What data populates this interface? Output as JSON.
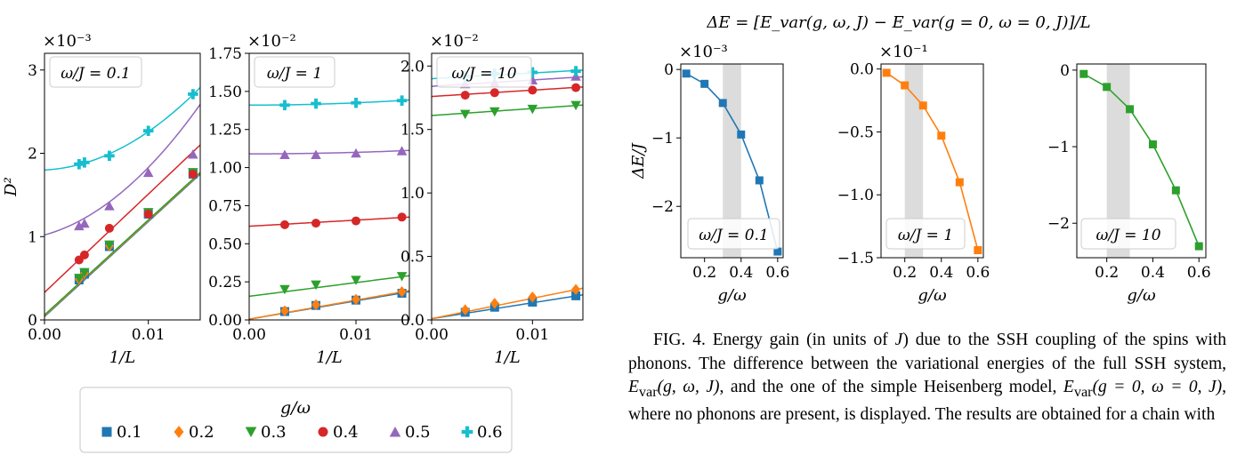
{
  "left_figure": {
    "legend_title": "g/ω",
    "legend_labels": [
      "0.1",
      "0.2",
      "0.3",
      "0.4",
      "0.5",
      "0.6"
    ]
  },
  "right_figure": {
    "title": "ΔE = [E_var(g, ω, J) − E_var(g = 0, ω = 0, J)]/L"
  },
  "chart_data": [
    {
      "type": "scatter",
      "panel": "left-1",
      "box_label": "ω/J = 0.1",
      "offset_label": "×10⁻³",
      "xlabel": "1/L",
      "ylabel": "D²",
      "xlim": [
        0,
        0.015
      ],
      "ylim": [
        0,
        3.2
      ],
      "xticks": [
        {
          "v": 0,
          "t": "0.00"
        },
        {
          "v": 0.01,
          "t": "0.01"
        }
      ],
      "yticks": [
        {
          "v": 0,
          "t": "0"
        },
        {
          "v": 1,
          "t": "1"
        },
        {
          "v": 2,
          "t": "2"
        },
        {
          "v": 3,
          "t": "3"
        }
      ],
      "x": [
        0.00333,
        0.00385,
        0.00625,
        0.01,
        0.0143
      ],
      "series": [
        {
          "name": "0.1",
          "values": [
            0.48,
            0.55,
            0.88,
            1.27,
            1.75
          ],
          "fit": [
            0.04,
            114
          ]
        },
        {
          "name": "0.2",
          "values": [
            0.49,
            0.56,
            0.89,
            1.28,
            1.76
          ],
          "fit": [
            0.05,
            114
          ]
        },
        {
          "name": "0.3",
          "values": [
            0.5,
            0.57,
            0.9,
            1.29,
            1.77
          ],
          "fit": [
            0.06,
            114
          ]
        },
        {
          "name": "0.4",
          "values": [
            0.72,
            0.78,
            1.1,
            1.27,
            1.75
          ],
          "fit": [
            0.33,
            118
          ]
        },
        {
          "name": "0.5",
          "values": [
            1.13,
            1.16,
            1.37,
            1.77,
            1.99
          ],
          "fit": [
            1.02,
            34,
            4700
          ]
        },
        {
          "name": "0.6",
          "values": [
            1.87,
            1.89,
            1.97,
            2.27,
            2.71
          ],
          "fit": [
            1.8,
            6,
            4000
          ]
        }
      ]
    },
    {
      "type": "scatter",
      "panel": "left-2",
      "box_label": "ω/J = 1",
      "offset_label": "×10⁻²",
      "xlabel": "1/L",
      "ylabel": "",
      "xlim": [
        0,
        0.015
      ],
      "ylim": [
        0,
        1.75
      ],
      "xticks": [
        {
          "v": 0,
          "t": "0.00"
        },
        {
          "v": 0.01,
          "t": "0.01"
        }
      ],
      "yticks": [
        {
          "v": 0,
          "t": "0.00"
        },
        {
          "v": 0.25,
          "t": "0.25"
        },
        {
          "v": 0.5,
          "t": "0.50"
        },
        {
          "v": 0.75,
          "t": "0.75"
        },
        {
          "v": 1,
          "t": "1.00"
        },
        {
          "v": 1.25,
          "t": "1.25"
        },
        {
          "v": 1.5,
          "t": "1.50"
        },
        {
          "v": 1.75,
          "t": "1.75"
        }
      ],
      "x": [
        0.00333,
        0.00625,
        0.01,
        0.0143
      ],
      "series": [
        {
          "name": "0.1",
          "values": [
            0.055,
            0.095,
            0.13,
            0.175
          ],
          "fit": [
            0.005,
            12
          ]
        },
        {
          "name": "0.2",
          "values": [
            0.06,
            0.1,
            0.135,
            0.185
          ],
          "fit": [
            0.005,
            12.5
          ]
        },
        {
          "name": "0.3",
          "values": [
            0.2,
            0.23,
            0.26,
            0.285
          ],
          "fit": [
            0.155,
            9
          ]
        },
        {
          "name": "0.4",
          "values": [
            0.625,
            0.635,
            0.65,
            0.675
          ],
          "fit": [
            0.615,
            4
          ]
        },
        {
          "name": "0.5",
          "values": [
            1.085,
            1.085,
            1.095,
            1.11
          ],
          "fit": [
            1.09,
            0,
            100
          ]
        },
        {
          "name": "0.6",
          "values": [
            1.41,
            1.42,
            1.425,
            1.44
          ],
          "fit": [
            1.41,
            0,
            150
          ]
        }
      ]
    },
    {
      "type": "scatter",
      "panel": "left-3",
      "box_label": "ω/J = 10",
      "offset_label": "×10⁻²",
      "xlabel": "1/L",
      "ylabel": "",
      "xlim": [
        0,
        0.015
      ],
      "ylim": [
        0,
        2.1
      ],
      "xticks": [
        {
          "v": 0,
          "t": "0.00"
        },
        {
          "v": 0.01,
          "t": "0.01"
        }
      ],
      "yticks": [
        {
          "v": 0,
          "t": "0.0"
        },
        {
          "v": 0.5,
          "t": "0.5"
        },
        {
          "v": 1,
          "t": "1.0"
        },
        {
          "v": 1.5,
          "t": "1.5"
        },
        {
          "v": 2,
          "t": "2.0"
        }
      ],
      "x": [
        0.00333,
        0.00625,
        0.01,
        0.0143
      ],
      "series": [
        {
          "name": "0.1",
          "values": [
            0.06,
            0.1,
            0.14,
            0.19
          ],
          "fit": [
            0.01,
            12.5
          ]
        },
        {
          "name": "0.2",
          "values": [
            0.08,
            0.13,
            0.18,
            0.24
          ],
          "fit": [
            0.01,
            16
          ]
        },
        {
          "name": "0.3",
          "values": [
            1.62,
            1.64,
            1.66,
            1.69
          ],
          "fit": [
            1.61,
            5.5
          ]
        },
        {
          "name": "0.4",
          "values": [
            1.77,
            1.79,
            1.81,
            1.83
          ],
          "fit": [
            1.76,
            5
          ]
        },
        {
          "name": "0.5",
          "values": [
            1.86,
            1.87,
            1.89,
            1.92
          ],
          "fit": [
            1.84,
            5
          ]
        },
        {
          "name": "0.6",
          "values": [
            1.92,
            1.94,
            1.95,
            1.96
          ],
          "fit": [
            1.9,
            4.5
          ]
        }
      ]
    },
    {
      "type": "line",
      "panel": "right-1",
      "box_label": "ω/J = 0.1",
      "offset_label": "×10⁻³",
      "xlabel": "g/ω",
      "ylabel": "ΔE/J",
      "color": "#1f77b4",
      "xlim": [
        0.07,
        0.63
      ],
      "ylim": [
        -2.75,
        0.08
      ],
      "shade": [
        0.3,
        0.4
      ],
      "xticks": [
        {
          "v": 0.2,
          "t": "0.2"
        },
        {
          "v": 0.4,
          "t": "0.4"
        },
        {
          "v": 0.6,
          "t": "0.6"
        }
      ],
      "yticks": [
        {
          "v": 0,
          "t": "0"
        },
        {
          "v": -1,
          "t": "−1"
        },
        {
          "v": -2,
          "t": "−2"
        }
      ],
      "x": [
        0.1,
        0.2,
        0.3,
        0.4,
        0.5,
        0.6
      ],
      "values": [
        -0.06,
        -0.21,
        -0.49,
        -0.95,
        -1.62,
        -2.66
      ]
    },
    {
      "type": "line",
      "panel": "right-2",
      "box_label": "ω/J = 1",
      "offset_label": "×10⁻¹",
      "xlabel": "g/ω",
      "ylabel": "",
      "color": "#ff7f0e",
      "xlim": [
        0.07,
        0.63
      ],
      "ylim": [
        -1.5,
        0.04
      ],
      "shade": [
        0.2,
        0.3
      ],
      "xticks": [
        {
          "v": 0.2,
          "t": "0.2"
        },
        {
          "v": 0.4,
          "t": "0.4"
        },
        {
          "v": 0.6,
          "t": "0.6"
        }
      ],
      "yticks": [
        {
          "v": 0,
          "t": "0.0"
        },
        {
          "v": -0.5,
          "t": "−0.5"
        },
        {
          "v": -1,
          "t": "−1.0"
        },
        {
          "v": -1.5,
          "t": "−1.5"
        }
      ],
      "x": [
        0.1,
        0.2,
        0.3,
        0.4,
        0.5,
        0.6
      ],
      "values": [
        -0.03,
        -0.13,
        -0.29,
        -0.53,
        -0.9,
        -1.44
      ]
    },
    {
      "type": "line",
      "panel": "right-3",
      "box_label": "ω/J = 10",
      "offset_label": "",
      "xlabel": "g/ω",
      "ylabel": "",
      "color": "#2ca02c",
      "xlim": [
        0.07,
        0.63
      ],
      "ylim": [
        -2.45,
        0.08
      ],
      "shade": [
        0.2,
        0.3
      ],
      "xticks": [
        {
          "v": 0.2,
          "t": "0.2"
        },
        {
          "v": 0.4,
          "t": "0.4"
        },
        {
          "v": 0.6,
          "t": "0.6"
        }
      ],
      "yticks": [
        {
          "v": 0,
          "t": "0"
        },
        {
          "v": -1,
          "t": "−1"
        },
        {
          "v": -2,
          "t": "−2"
        }
      ],
      "x": [
        0.1,
        0.2,
        0.3,
        0.4,
        0.5,
        0.6
      ],
      "values": [
        -0.05,
        -0.22,
        -0.51,
        -0.97,
        -1.57,
        -2.3
      ]
    }
  ],
  "series_colors": [
    "#1f77b4",
    "#ff7f0e",
    "#2ca02c",
    "#d62728",
    "#9467bd",
    "#17becf"
  ],
  "series_markers": [
    "square",
    "diamond",
    "triangle-down",
    "circle",
    "triangle-up",
    "plus"
  ],
  "caption": {
    "p1": "FIG. 4. Energy gain (in units of ",
    "J1": "J",
    "p2": ") due to the SSH coupling of the spins with phonons. The difference between the variational energies of the full SSH system, ",
    "E1": "E",
    "s1": "var",
    "a1": "(g, ω, J)",
    "p3": ", and the one of the simple Heisenberg model, ",
    "E2": "E",
    "s2": "var",
    "a2": "(g = 0, ω = 0, J)",
    "p4": ", where no phonons are present, is displayed. The results are obtained for a chain with"
  }
}
